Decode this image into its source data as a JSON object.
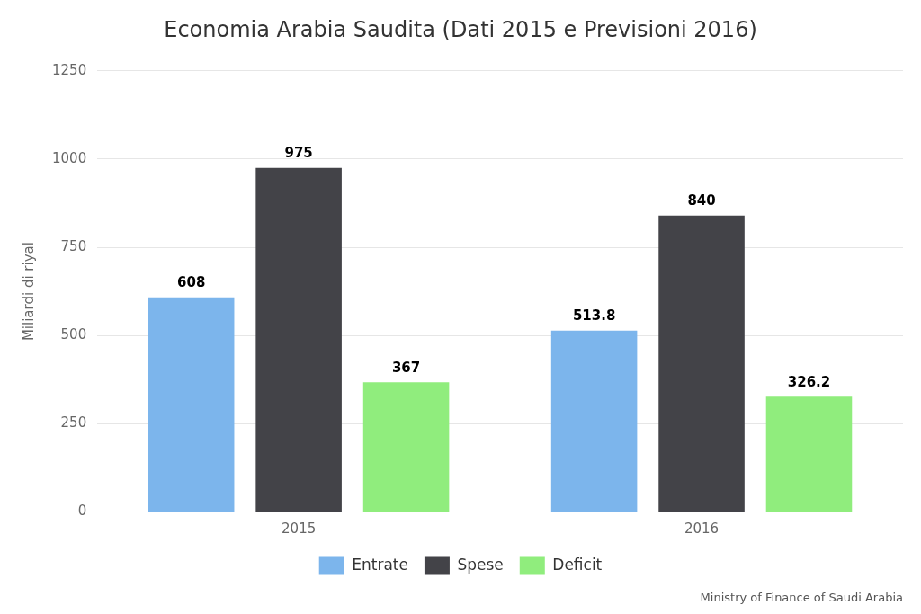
{
  "chart_data": {
    "type": "bar",
    "title": "Economia Arabia Saudita (Dati 2015 e Previsioni 2016)",
    "y_label": "Miliardi di riyal",
    "source": "Ministry of Finance of Saudi Arabia",
    "categories": [
      "2015",
      "2016"
    ],
    "series": [
      {
        "name": "Entrate",
        "color": "#7cb5ec",
        "values": [
          608,
          513.8
        ]
      },
      {
        "name": "Spese",
        "color": "#434348",
        "values": [
          975,
          840
        ]
      },
      {
        "name": "Deficit",
        "color": "#90ed7d",
        "values": [
          367,
          326.2
        ]
      }
    ],
    "ylim": [
      0,
      1250
    ],
    "yticks": [
      0,
      250,
      500,
      750,
      1000,
      1250
    ],
    "grid": true,
    "legend": "bottom",
    "data_labels": true
  }
}
